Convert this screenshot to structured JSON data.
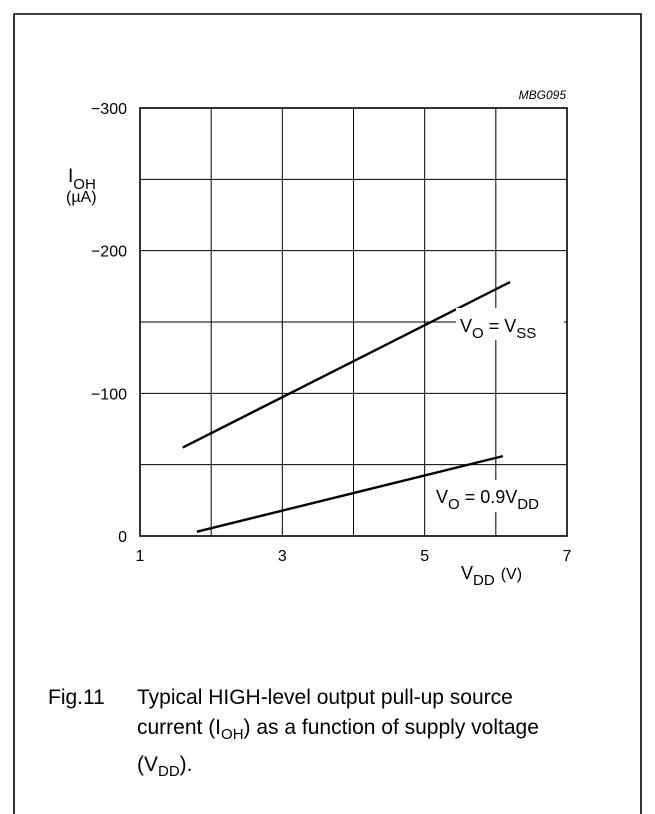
{
  "chart_data": {
    "type": "line",
    "figure_code": "MBG095",
    "ylabel": {
      "symbol": "I",
      "sub": "OH",
      "unit": "(µA)"
    },
    "xlabel": {
      "symbol": "V",
      "sub": "DD",
      "unit": "(V)"
    },
    "xlim": [
      1,
      7
    ],
    "ylim": [
      0,
      -300
    ],
    "x_ticks": [
      1,
      3,
      5,
      7
    ],
    "x_tick_labels": [
      "1",
      "3",
      "5",
      "7"
    ],
    "y_ticks": [
      0,
      -100,
      -200,
      -300
    ],
    "y_tick_labels": [
      "0",
      "−100",
      "−200",
      "−300"
    ],
    "grid": true,
    "series": [
      {
        "label": {
          "a": "V",
          "a_sub": "O",
          "b": " = V",
          "b_sub": "SS"
        },
        "x": [
          1.6,
          6.2
        ],
        "y": [
          -62,
          -178
        ]
      },
      {
        "label": {
          "a": "V",
          "a_sub": "O",
          "b": " = 0.9V",
          "b_sub": "DD"
        },
        "x": [
          1.8,
          6.1
        ],
        "y": [
          -3,
          -56
        ]
      }
    ]
  },
  "caption": {
    "number": "Fig.11",
    "line1": "Typical HIGH-level output pull-up source",
    "line2_pre": "current (I",
    "line2_sub": "OH",
    "line2_post": ") as a function of supply voltage",
    "line3_pre": "(V",
    "line3_sub": "DD",
    "line3_post": ")."
  }
}
